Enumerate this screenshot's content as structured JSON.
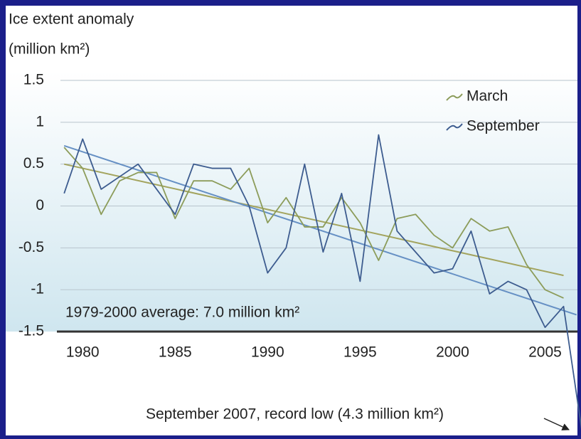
{
  "chart_data": {
    "type": "line",
    "title": "Ice extent anomaly",
    "subtitle": "(million km²)",
    "x": [
      1979,
      1980,
      1981,
      1982,
      1983,
      1984,
      1985,
      1986,
      1987,
      1988,
      1989,
      1990,
      1991,
      1992,
      1993,
      1994,
      1995,
      1996,
      1997,
      1998,
      1999,
      2000,
      2001,
      2002,
      2003,
      2004,
      2005,
      2006,
      2007
    ],
    "series": [
      {
        "name": "March",
        "color": "#8c9c5a",
        "values": [
          0.7,
          0.45,
          -0.1,
          0.3,
          0.4,
          0.4,
          -0.15,
          0.3,
          0.3,
          0.2,
          0.45,
          -0.2,
          0.1,
          -0.25,
          -0.25,
          0.1,
          -0.2,
          -0.65,
          -0.15,
          -0.1,
          -0.35,
          -0.5,
          -0.15,
          -0.3,
          -0.25,
          -0.7,
          -1.0,
          -1.1,
          null
        ]
      },
      {
        "name": "September",
        "color": "#3d5c8f",
        "values": [
          0.15,
          0.8,
          0.2,
          0.35,
          0.5,
          0.2,
          -0.1,
          0.5,
          0.45,
          0.45,
          0.0,
          -0.8,
          -0.5,
          0.5,
          -0.55,
          0.15,
          -0.9,
          0.85,
          -0.3,
          -0.55,
          -0.8,
          -0.75,
          -0.3,
          -1.05,
          -0.9,
          -1.0,
          -1.45,
          -1.2,
          -2.7
        ]
      }
    ],
    "trend_lines": [
      {
        "color": "#a3a45e",
        "x": [
          1979,
          2006
        ],
        "values": [
          0.5,
          -0.83
        ]
      },
      {
        "color": "#6690c4",
        "x": [
          1979,
          2006.7
        ],
        "values": [
          0.72,
          -1.3
        ]
      }
    ],
    "xlim": [
      1978.8,
      2006.75
    ],
    "ylim": [
      -1.5,
      1.5
    ],
    "xticks": [
      1980,
      1985,
      1990,
      1995,
      2000,
      2005
    ],
    "yticks": [
      1.5,
      1,
      0.5,
      0,
      -0.5,
      -1,
      -1.5
    ],
    "grid": true,
    "legend": "upper right",
    "annotations": [
      "1979-2000 average: 7.0 million km²",
      "September 2007, record low (4.3 million km²)"
    ]
  }
}
